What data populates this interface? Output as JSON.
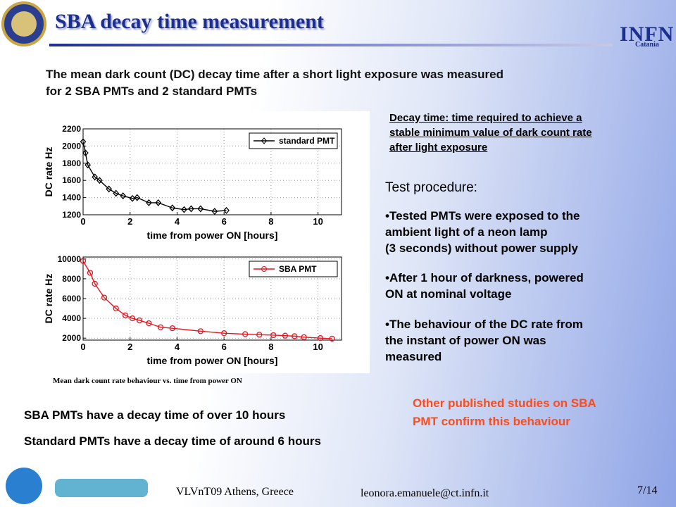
{
  "header": {
    "title": "SBA decay time measurement",
    "logo_text": "INFN",
    "logo_subtext": "Catania"
  },
  "intro": [
    "The mean dark count (DC) decay time after a short light exposure was measured",
    "for 2 SBA PMTs and 2 standard PMTs"
  ],
  "definition": [
    "Decay time: time required to achieve a",
    "stable minimum value of dark count rate",
    "after light exposure"
  ],
  "procedure": {
    "heading": "Test procedure:",
    "bullets": [
      [
        "•Tested PMTs were exposed to the",
        "ambient light of a neon lamp",
        "(3 seconds) without power supply"
      ],
      [
        "•After 1 hour of darkness, powered",
        "ON at nominal voltage"
      ],
      [
        "•The behaviour of the DC rate from",
        "the instant of power ON was",
        "measured"
      ]
    ]
  },
  "caption": "Mean dark count rate behaviour vs. time from power ON",
  "other": [
    "Other published studies on SBA",
    "PMT confirm this behaviour"
  ],
  "conclusions": [
    "SBA PMTs have a decay time of over 10 hours",
    "Standard PMTs have a decay time of around 6 hours"
  ],
  "footer": {
    "event": "VLVnT09 Athens, Greece",
    "email": "leonora.emanuele@ct.infn.it",
    "page": "7/14"
  },
  "chart_data": [
    {
      "type": "line",
      "xlabel": "time from power ON [hours]",
      "ylabel": "DC rate Hz",
      "marker": "diamond",
      "grid": true,
      "legend": "upper right",
      "x": [
        0,
        0.1,
        0.2,
        0.5,
        0.7,
        1.1,
        1.4,
        1.7,
        2.1,
        2.3,
        2.8,
        3.2,
        3.8,
        4.3,
        4.6,
        5,
        5.6,
        6.1
      ],
      "series": [
        {
          "name": "standard PMT",
          "color": "#000000",
          "values": [
            2050,
            1920,
            1780,
            1640,
            1600,
            1500,
            1450,
            1420,
            1390,
            1400,
            1340,
            1340,
            1280,
            1260,
            1270,
            1270,
            1240,
            1250
          ]
        }
      ],
      "xlim": [
        0,
        11
      ],
      "ylim": [
        1200,
        2200
      ],
      "xticks": [
        0,
        2,
        4,
        6,
        8,
        10
      ],
      "yticks": [
        1200,
        1400,
        1600,
        1800,
        2000,
        2200
      ]
    },
    {
      "type": "line",
      "xlabel": "time from power ON [hours]",
      "ylabel": "DC rate Hz",
      "marker": "circle",
      "grid": true,
      "legend": "upper right",
      "x": [
        0,
        0.3,
        0.5,
        0.9,
        1.4,
        1.8,
        2.1,
        2.4,
        2.8,
        3.3,
        3.8,
        5,
        6,
        6.9,
        7.5,
        8.1,
        8.6,
        9,
        9.4,
        10.1,
        10.6
      ],
      "series": [
        {
          "name": "SBA PMT",
          "color": "#e8141e",
          "values": [
            9800,
            8600,
            7500,
            6100,
            5000,
            4300,
            4000,
            3800,
            3500,
            3100,
            3000,
            2700,
            2500,
            2400,
            2350,
            2300,
            2250,
            2200,
            2100,
            2000,
            1950
          ]
        }
      ],
      "xlim": [
        0,
        11
      ],
      "ylim": [
        1800,
        10200
      ],
      "xticks": [
        0,
        2,
        4,
        6,
        8,
        10
      ],
      "yticks": [
        2000,
        4000,
        6000,
        8000,
        10000
      ]
    }
  ]
}
